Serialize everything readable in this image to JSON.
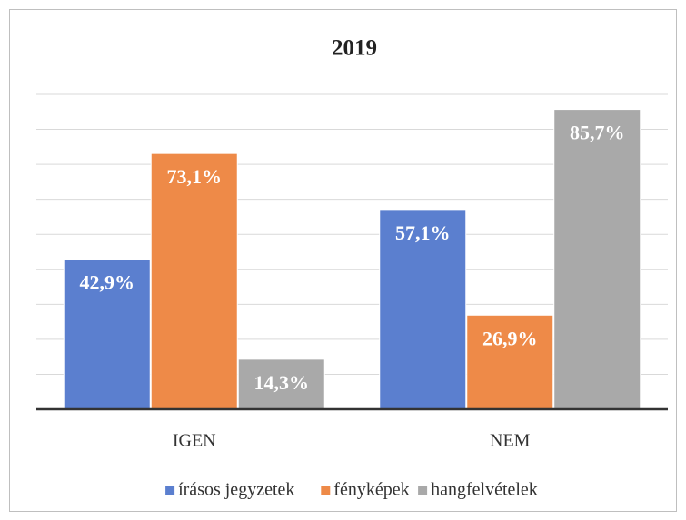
{
  "chart_data": {
    "type": "bar",
    "title": "2019",
    "categories": [
      "IGEN",
      "NEM"
    ],
    "series": [
      {
        "name": "írásos jegyzetek",
        "color": "#5b7fcf",
        "values": [
          42.9,
          57.1
        ],
        "value_labels": [
          "42,9%",
          "57,1%"
        ]
      },
      {
        "name": "fényképek",
        "color": "#ee8a48",
        "values": [
          73.1,
          26.9
        ],
        "value_labels": [
          "73,1%",
          "26,9%"
        ]
      },
      {
        "name": "hangfelvételek",
        "color": "#a9a9a9",
        "values": [
          14.3,
          85.7
        ],
        "value_labels": [
          "14,3%",
          "85,7%"
        ]
      }
    ],
    "ylim": [
      0,
      90
    ],
    "yticks": [
      0,
      10,
      20,
      30,
      40,
      50,
      60,
      70,
      80,
      90
    ],
    "grid": true,
    "legend": "bottom"
  }
}
